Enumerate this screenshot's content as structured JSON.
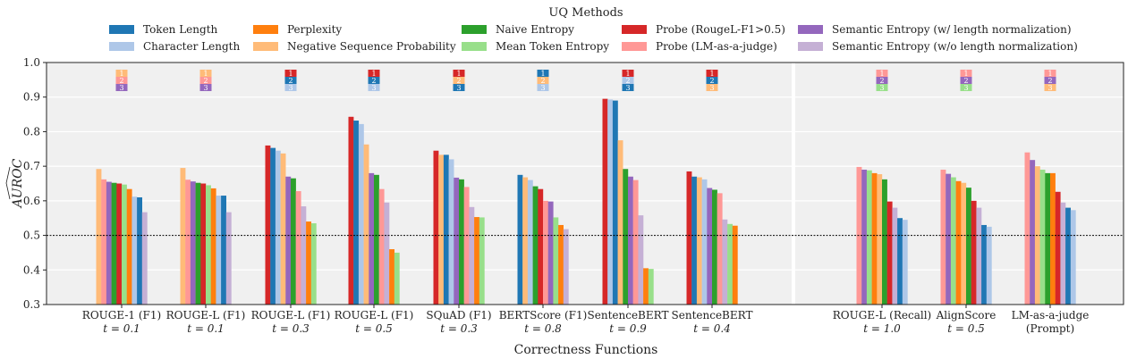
{
  "chart_data": {
    "type": "bar",
    "xlabel": "Correctness Functions",
    "ylabel": "AUROC (hat)",
    "ylabel_text": "AUROC",
    "ylim": [
      0.3,
      1.0
    ],
    "yticks": [
      "0.3",
      "0.4",
      "0.5",
      "0.6",
      "0.7",
      "0.8",
      "0.9",
      "1.0"
    ],
    "grid": true,
    "reference_line": 0.5,
    "legend": {
      "title": "UQ Methods",
      "placement": "top"
    },
    "methods": [
      {
        "key": "TL",
        "name": "Token Length",
        "color": "#1f77b4"
      },
      {
        "key": "CL",
        "name": "Character Length",
        "color": "#aec7e8"
      },
      {
        "key": "PPL",
        "name": "Perplexity",
        "color": "#ff7f0e"
      },
      {
        "key": "NSP",
        "name": "Negative Sequence Probability",
        "color": "#ffbb78"
      },
      {
        "key": "NE",
        "name": "Naive Entropy",
        "color": "#2ca02c"
      },
      {
        "key": "MTE",
        "name": "Mean Token Entropy",
        "color": "#98df8a"
      },
      {
        "key": "PR",
        "name": "Probe (RougeL-F1>0.5)",
        "color": "#d62728"
      },
      {
        "key": "PJ",
        "name": "Probe (LM-as-a-judge)",
        "color": "#ff9896"
      },
      {
        "key": "SEw",
        "name": "Semantic Entropy (w/ length normalization)",
        "color": "#9467bd"
      },
      {
        "key": "SEwo",
        "name": "Semantic Entropy (w/o length normalization)",
        "color": "#c5b0d5"
      }
    ],
    "groups": [
      {
        "label": "ROUGE-1 (F1)",
        "sub": "t = 0.1",
        "bars": [
          [
            "NSP",
            0.692
          ],
          [
            "PJ",
            0.662
          ],
          [
            "SEw",
            0.655
          ],
          [
            "NE",
            0.652
          ],
          [
            "PR",
            0.65
          ],
          [
            "MTE",
            0.647
          ],
          [
            "PPL",
            0.634
          ],
          [
            "CL",
            0.612
          ],
          [
            "TL",
            0.61
          ],
          [
            "SEwo",
            0.567
          ]
        ]
      },
      {
        "label": "ROUGE-L (F1)",
        "sub": "t = 0.1",
        "bars": [
          [
            "NSP",
            0.695
          ],
          [
            "PJ",
            0.661
          ],
          [
            "SEw",
            0.656
          ],
          [
            "NE",
            0.652
          ],
          [
            "PR",
            0.65
          ],
          [
            "MTE",
            0.645
          ],
          [
            "PPL",
            0.636
          ],
          [
            "CL",
            0.615
          ],
          [
            "TL",
            0.615
          ],
          [
            "SEwo",
            0.567
          ]
        ]
      },
      {
        "label": "ROUGE-L (F1)",
        "sub": "t = 0.3",
        "bars": [
          [
            "PR",
            0.76
          ],
          [
            "TL",
            0.753
          ],
          [
            "CL",
            0.745
          ],
          [
            "NSP",
            0.737
          ],
          [
            "SEw",
            0.67
          ],
          [
            "NE",
            0.665
          ],
          [
            "PJ",
            0.628
          ],
          [
            "SEwo",
            0.584
          ],
          [
            "PPL",
            0.54
          ],
          [
            "MTE",
            0.535
          ]
        ]
      },
      {
        "label": "ROUGE-L (F1)",
        "sub": "t = 0.5",
        "bars": [
          [
            "PR",
            0.843
          ],
          [
            "TL",
            0.832
          ],
          [
            "CL",
            0.822
          ],
          [
            "NSP",
            0.763
          ],
          [
            "SEw",
            0.68
          ],
          [
            "NE",
            0.675
          ],
          [
            "PJ",
            0.634
          ],
          [
            "SEwo",
            0.595
          ],
          [
            "PPL",
            0.46
          ],
          [
            "MTE",
            0.45
          ]
        ]
      },
      {
        "label": "SQuAD (F1)",
        "sub": "t = 0.3",
        "bars": [
          [
            "PR",
            0.745
          ],
          [
            "NSP",
            0.733
          ],
          [
            "TL",
            0.733
          ],
          [
            "CL",
            0.72
          ],
          [
            "SEw",
            0.667
          ],
          [
            "NE",
            0.662
          ],
          [
            "PJ",
            0.64
          ],
          [
            "SEwo",
            0.582
          ],
          [
            "PPL",
            0.553
          ],
          [
            "MTE",
            0.552
          ]
        ]
      },
      {
        "label": "BERTScore (F1)",
        "sub": "t = 0.8",
        "bars": [
          [
            "TL",
            0.675
          ],
          [
            "NSP",
            0.668
          ],
          [
            "CL",
            0.66
          ],
          [
            "NE",
            0.642
          ],
          [
            "PR",
            0.634
          ],
          [
            "PJ",
            0.6
          ],
          [
            "SEw",
            0.598
          ],
          [
            "MTE",
            0.552
          ],
          [
            "PPL",
            0.53
          ],
          [
            "SEwo",
            0.518
          ]
        ]
      },
      {
        "label": "SentenceBERT",
        "sub": "t = 0.9",
        "bars": [
          [
            "PR",
            0.895
          ],
          [
            "CL",
            0.893
          ],
          [
            "TL",
            0.89
          ],
          [
            "NSP",
            0.775
          ],
          [
            "NE",
            0.692
          ],
          [
            "SEw",
            0.67
          ],
          [
            "PJ",
            0.66
          ],
          [
            "SEwo",
            0.558
          ],
          [
            "PPL",
            0.405
          ],
          [
            "MTE",
            0.403
          ]
        ]
      },
      {
        "label": "SentenceBERT",
        "sub": "t = 0.4",
        "bars": [
          [
            "PR",
            0.685
          ],
          [
            "TL",
            0.67
          ],
          [
            "NSP",
            0.668
          ],
          [
            "CL",
            0.662
          ],
          [
            "SEw",
            0.637
          ],
          [
            "NE",
            0.632
          ],
          [
            "PJ",
            0.622
          ],
          [
            "SEwo",
            0.546
          ],
          [
            "MTE",
            0.533
          ],
          [
            "PPL",
            0.528
          ]
        ]
      },
      {
        "label": "ROUGE-L (Recall)",
        "sub": "t = 1.0",
        "bars": [
          [
            "PJ",
            0.698
          ],
          [
            "SEw",
            0.69
          ],
          [
            "MTE",
            0.688
          ],
          [
            "PPL",
            0.68
          ],
          [
            "NSP",
            0.677
          ],
          [
            "NE",
            0.662
          ],
          [
            "PR",
            0.598
          ],
          [
            "SEwo",
            0.58
          ],
          [
            "TL",
            0.55
          ],
          [
            "CL",
            0.545
          ]
        ]
      },
      {
        "label": "AlignScore",
        "sub": "t = 0.5",
        "bars": [
          [
            "PJ",
            0.69
          ],
          [
            "SEw",
            0.678
          ],
          [
            "MTE",
            0.668
          ],
          [
            "PPL",
            0.657
          ],
          [
            "NSP",
            0.652
          ],
          [
            "NE",
            0.638
          ],
          [
            "PR",
            0.6
          ],
          [
            "SEwo",
            0.58
          ],
          [
            "TL",
            0.53
          ],
          [
            "CL",
            0.525
          ]
        ]
      },
      {
        "label": "LM-as-a-judge",
        "sub": "(Prompt)",
        "bars": [
          [
            "PJ",
            0.74
          ],
          [
            "SEw",
            0.718
          ],
          [
            "NSP",
            0.7
          ],
          [
            "MTE",
            0.69
          ],
          [
            "NE",
            0.68
          ],
          [
            "PPL",
            0.68
          ],
          [
            "PR",
            0.626
          ],
          [
            "SEwo",
            0.595
          ],
          [
            "TL",
            0.58
          ],
          [
            "CL",
            0.573
          ]
        ]
      }
    ],
    "rank_labels": [
      "1",
      "2",
      "3"
    ]
  }
}
